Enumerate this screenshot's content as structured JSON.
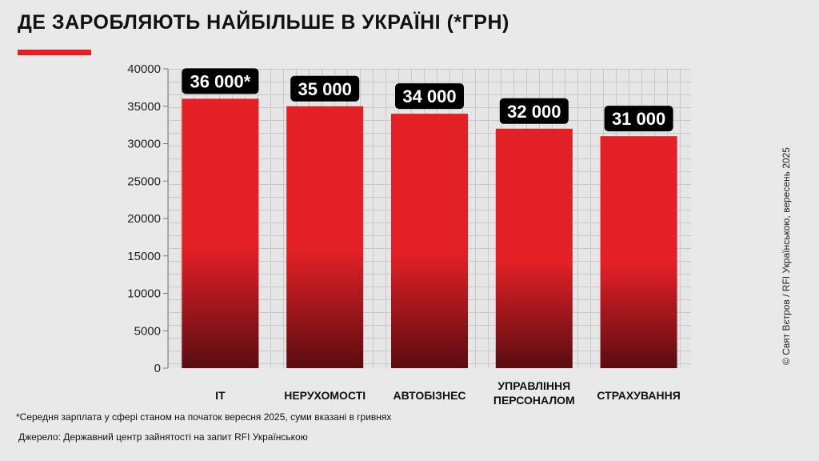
{
  "title": "ДЕ ЗАРОБЛЯЮТЬ НАЙБІЛЬШЕ В УКРАЇНІ (*ГРН)",
  "footnote": "*Середня зарплата у сфері станом на початок вересня 2025, суми вказані в гривнях",
  "source": "Джерело: Державний центр зайнятості на запит RFI Українською",
  "credit": "© Свят Вєтров / RFI Українською, вересень 2025",
  "colors": {
    "accent": "#e32026",
    "bar_bottom": "#5a0c10",
    "label_bg": "#000000",
    "label_text": "#ffffff",
    "background": "#e9e9e9"
  },
  "chart_data": {
    "type": "bar",
    "categories": [
      "ІТ",
      "НЕРУХОМОСТІ",
      "АВТОБІЗНЕС",
      "УПРАВЛІННЯ ПЕРСОНАЛОМ",
      "СТРАХУВАННЯ"
    ],
    "category_lines": [
      [
        "ІТ"
      ],
      [
        "НЕРУХОМОСТІ"
      ],
      [
        "АВТОБІЗНЕС"
      ],
      [
        "УПРАВЛІННЯ",
        "ПЕРСОНАЛОМ"
      ],
      [
        "СТРАХУВАННЯ"
      ]
    ],
    "values": [
      36000,
      35000,
      34000,
      32000,
      31000
    ],
    "data_labels": [
      "36 000*",
      "35 000",
      "34 000",
      "32 000",
      "31 000"
    ],
    "yticks": [
      0,
      5000,
      10000,
      15000,
      20000,
      25000,
      30000,
      35000,
      40000
    ],
    "ylim": [
      0,
      40000
    ],
    "xlabel": "",
    "ylabel": "",
    "grid": true
  }
}
